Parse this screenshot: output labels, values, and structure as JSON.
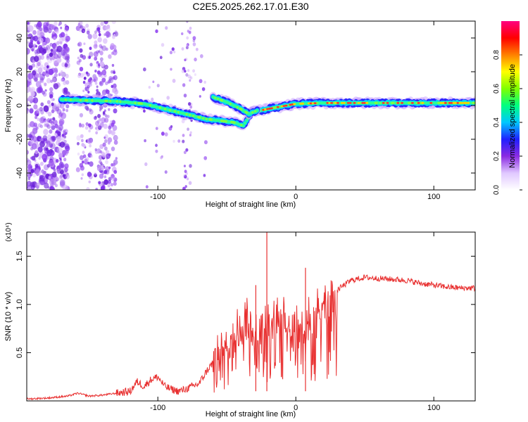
{
  "title": "C2E5.2025.262.17.01.E30",
  "chart_data": [
    {
      "type": "heatmap",
      "title": "C2E5.2025.262.17.01.E30",
      "xlabel": "Height of straight line (km)",
      "ylabel": "Frequency (Hz)",
      "xlim": [
        -195,
        130
      ],
      "ylim": [
        -50,
        50
      ],
      "x_ticks": [
        -100,
        0,
        100
      ],
      "x_tick_labels": [
        "-100",
        "0",
        "100"
      ],
      "y_ticks": [
        -40,
        -20,
        0,
        20,
        40
      ],
      "y_tick_labels": [
        "-40",
        "-20",
        "0",
        "20",
        "40"
      ],
      "grid": false,
      "track_points": [
        {
          "x": -170,
          "y": 3.5
        },
        {
          "x": -150,
          "y": 3
        },
        {
          "x": -130,
          "y": 2.5
        },
        {
          "x": -110,
          "y": 1
        },
        {
          "x": -95,
          "y": -2
        },
        {
          "x": -80,
          "y": -5
        },
        {
          "x": -65,
          "y": -8
        },
        {
          "x": -45,
          "y": -10
        },
        {
          "x": -38,
          "y": -12
        },
        {
          "x": -32,
          "y": -4
        },
        {
          "x": -20,
          "y": -2
        },
        {
          "x": 0,
          "y": 1
        },
        {
          "x": 20,
          "y": 1.5
        },
        {
          "x": 50,
          "y": 1.5
        },
        {
          "x": 80,
          "y": 1.5
        },
        {
          "x": 110,
          "y": 1.5
        },
        {
          "x": 130,
          "y": 1.5
        }
      ],
      "branch_points": [
        {
          "x": -60,
          "y": 5
        },
        {
          "x": -50,
          "y": 2
        },
        {
          "x": -40,
          "y": -2
        },
        {
          "x": -34,
          "y": -5
        },
        {
          "x": -28,
          "y": -3
        }
      ],
      "colorbar": {
        "label": "Normalized spectral amplitude",
        "range": [
          0,
          1
        ],
        "ticks": [
          0.0,
          0.2,
          0.4,
          0.6,
          0.8
        ],
        "tick_labels": [
          "0.0",
          "0.2",
          "0.4",
          "0.6",
          "0.8"
        ],
        "colors": [
          "#ffffff",
          "#e0c8ff",
          "#8a2be2",
          "#2020ff",
          "#00c8ff",
          "#00ff80",
          "#80ff00",
          "#ffff00",
          "#ff8000",
          "#ff0000",
          "#ff0080"
        ]
      }
    },
    {
      "type": "line",
      "xlabel": "Height of straight line (km)",
      "ylabel": "SNR (10 * v/v)",
      "y_scale_label": "(x10⁴)",
      "xlim": [
        -195,
        130
      ],
      "ylim": [
        0,
        1.75
      ],
      "x_ticks": [
        -100,
        0,
        100
      ],
      "x_tick_labels": [
        "-100",
        "0",
        "100"
      ],
      "y_ticks": [
        0.5,
        1.0,
        1.5
      ],
      "y_tick_labels": [
        "0.5",
        "1.0",
        "1.5"
      ],
      "grid": false,
      "series": [
        {
          "name": "SNR",
          "color": "#e83030",
          "x": [
            -195,
            -180,
            -165,
            -158,
            -150,
            -140,
            -130,
            -120,
            -115,
            -110,
            -105,
            -100,
            -95,
            -90,
            -85,
            -80,
            -75,
            -70,
            -65,
            -60,
            -55,
            -50,
            -45,
            -40,
            -35,
            -30,
            -25,
            -20,
            -15,
            -10,
            -5,
            0,
            5,
            10,
            15,
            20,
            25,
            30,
            35,
            40,
            50,
            60,
            70,
            80,
            90,
            100,
            110,
            120,
            130
          ],
          "values": [
            0.02,
            0.03,
            0.05,
            0.08,
            0.05,
            0.06,
            0.08,
            0.1,
            0.2,
            0.15,
            0.22,
            0.25,
            0.15,
            0.12,
            0.1,
            0.12,
            0.15,
            0.18,
            0.3,
            0.4,
            0.5,
            0.6,
            0.7,
            0.8,
            0.85,
            0.75,
            0.7,
            0.85,
            0.9,
            0.95,
            0.8,
            0.75,
            0.85,
            0.9,
            1.0,
            1.05,
            1.1,
            1.15,
            1.2,
            1.25,
            1.28,
            1.27,
            1.26,
            1.25,
            1.22,
            1.2,
            1.18,
            1.17,
            1.17
          ]
        }
      ],
      "spikes": [
        {
          "x": -29,
          "value": 1.2
        },
        {
          "x": -21,
          "value": 1.75
        },
        {
          "x": 7,
          "value": 1.38
        }
      ]
    }
  ]
}
